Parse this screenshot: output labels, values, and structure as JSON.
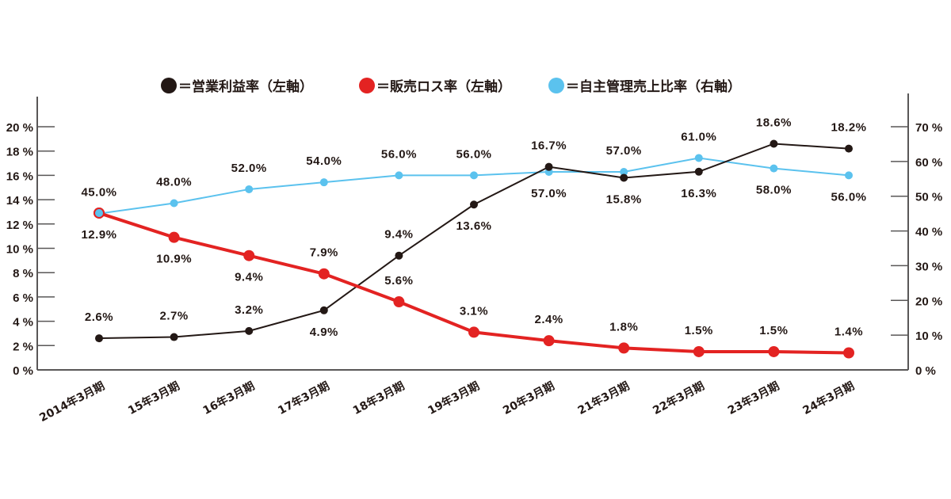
{
  "chart_data": {
    "type": "line",
    "categories": [
      "2014年3月期",
      "15年3月期",
      "16年3月期",
      "17年3月期",
      "18年3月期",
      "19年3月期",
      "20年3月期",
      "21年3月期",
      "22年3月期",
      "23年3月期",
      "24年3月期"
    ],
    "series": [
      {
        "name": "＝営業利益率（左軸）",
        "axis": "left",
        "color": "#231815",
        "values": [
          2.6,
          2.7,
          3.2,
          4.9,
          9.4,
          13.6,
          16.7,
          15.8,
          16.3,
          18.6,
          18.2
        ],
        "labels": [
          "2.6%",
          "2.7%",
          "3.2%",
          "4.9%",
          "9.4%",
          "13.6%",
          "16.7%",
          "15.8%",
          "16.3%",
          "18.6%",
          "18.2%"
        ]
      },
      {
        "name": "＝販売ロス率（左軸）",
        "axis": "left",
        "color": "#e32322",
        "values": [
          12.9,
          10.9,
          9.4,
          7.9,
          5.6,
          3.1,
          2.4,
          1.8,
          1.5,
          1.5,
          1.4
        ],
        "labels": [
          "12.9%",
          "10.9%",
          "9.4%",
          "7.9%",
          "5.6%",
          "3.1%",
          "2.4%",
          "1.8%",
          "1.5%",
          "1.5%",
          "1.4%"
        ]
      },
      {
        "name": "＝自主管理売上比率（右軸）",
        "axis": "right",
        "color": "#5bc2ee",
        "values": [
          45.0,
          48.0,
          52.0,
          54.0,
          56.0,
          56.0,
          57.0,
          57.0,
          61.0,
          58.0,
          56.0
        ],
        "labels": [
          "45.0%",
          "48.0%",
          "52.0%",
          "54.0%",
          "56.0%",
          "56.0%",
          "57.0%",
          "57.0%",
          "61.0%",
          "58.0%",
          "56.0%"
        ]
      }
    ],
    "left_axis": {
      "ylim": [
        0,
        20
      ],
      "ticks": [
        "0 %",
        "2 %",
        "4 %",
        "6 %",
        "8 %",
        "10 %",
        "12 %",
        "14 %",
        "16 %",
        "18 %",
        "20 %"
      ]
    },
    "right_axis": {
      "ylim": [
        0,
        70
      ],
      "ticks": [
        "0 %",
        "10 %",
        "20 %",
        "30 %",
        "40 %",
        "50 %",
        "60 %",
        "70 %"
      ]
    },
    "legend": "top",
    "grid": false
  }
}
